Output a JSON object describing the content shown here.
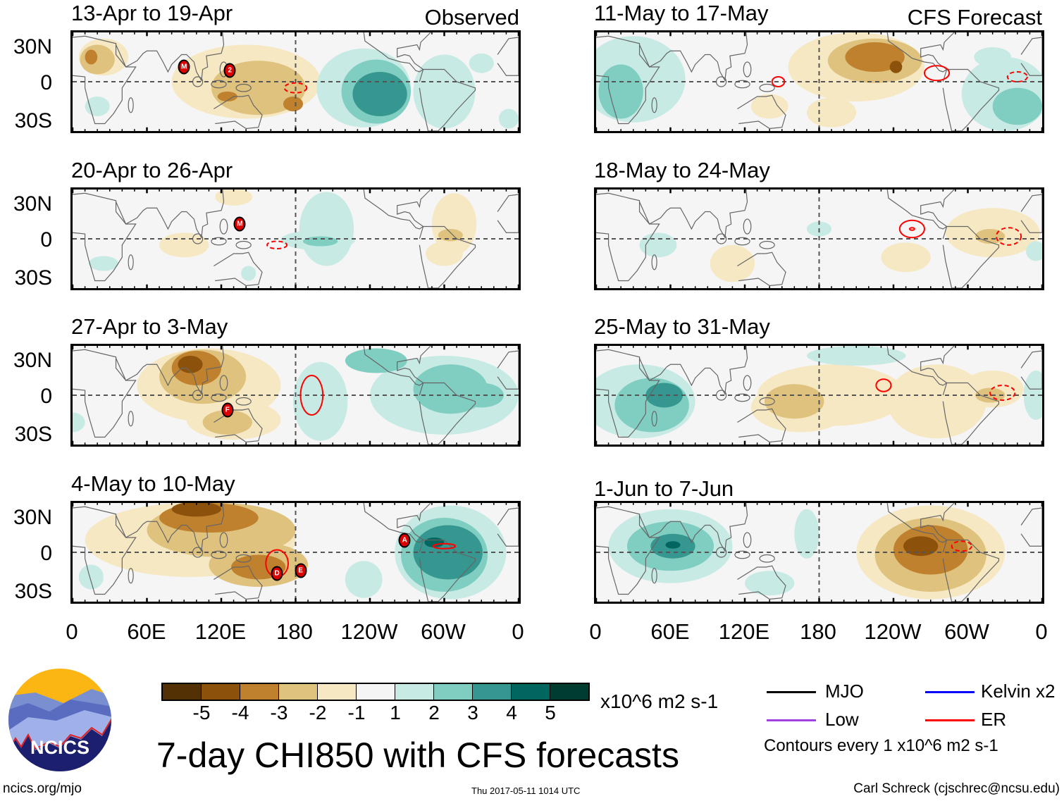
{
  "title": "7-day CHI850 with CFS forecasts",
  "column_labels": {
    "observed": "Observed",
    "forecast": "CFS Forecast"
  },
  "lat_labels": [
    "30N",
    "0",
    "30S"
  ],
  "lon_labels": [
    "0",
    "60E",
    "120E",
    "180",
    "120W",
    "60W",
    "0"
  ],
  "panels": [
    {
      "title": "13-Apr to 19-Apr",
      "storms": [
        {
          "label": "M",
          "lon": 90,
          "lat": 12
        },
        {
          "label": "2",
          "lon": 127,
          "lat": 9
        }
      ]
    },
    {
      "title": "20-Apr to 26-Apr",
      "storms": [
        {
          "label": "M",
          "lon": 135,
          "lat": 12
        }
      ]
    },
    {
      "title": "27-Apr to 3-May",
      "storms": [
        {
          "label": "F",
          "lon": 125,
          "lat": -12
        }
      ]
    },
    {
      "title": "4-May to 10-May",
      "storms": [
        {
          "label": "A",
          "lon": 268,
          "lat": 10
        },
        {
          "label": "D",
          "lon": 165,
          "lat": -17
        },
        {
          "label": "E",
          "lon": 184,
          "lat": -15
        }
      ]
    },
    {
      "title": "11-May to 17-May",
      "storms": []
    },
    {
      "title": "18-May to 24-May",
      "storms": []
    },
    {
      "title": "25-May to 31-May",
      "storms": []
    },
    {
      "title": "1-Jun to 7-Jun",
      "storms": []
    }
  ],
  "colorbar": {
    "labels": [
      "-5",
      "-4",
      "-3",
      "-2",
      "-1",
      "1",
      "2",
      "3",
      "4",
      "5"
    ],
    "colors": [
      "#543005",
      "#8c510a",
      "#bf812d",
      "#dfc27d",
      "#f6e8c3",
      "#f5f5f5",
      "#c7eae5",
      "#80cdc1",
      "#35978f",
      "#01665e",
      "#003c30"
    ],
    "units": "x10^6 m2 s-1"
  },
  "legend": {
    "items": [
      {
        "label": "MJO",
        "color": "#000000"
      },
      {
        "label": "Kelvin x2",
        "color": "#0000ff"
      },
      {
        "label": "Low",
        "color": "#a040e0"
      },
      {
        "label": "ER",
        "color": "#ff0000"
      }
    ],
    "contours_note": "Contours every 1 x10^6 m2 s-1"
  },
  "footer": {
    "logo_text": "NCICS",
    "url": "ncics.org/mjo",
    "timestamp": "Thu 2017-05-11 1014 UTC",
    "author": "Carl Schreck (cjschrec@ncsu.edu)"
  }
}
